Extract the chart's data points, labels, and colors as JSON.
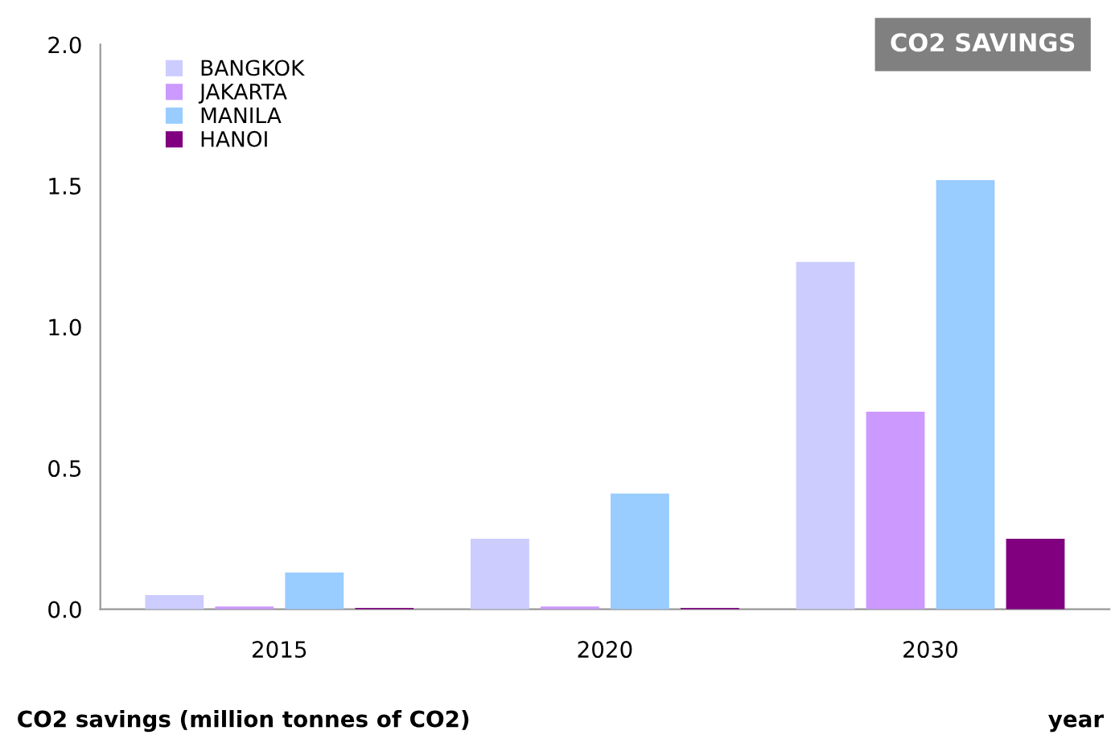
{
  "chart_data": {
    "type": "bar",
    "title": "CO2 SAVINGS",
    "ylabel": "CO2 savings (million tonnes of CO2)",
    "xlabel": "year",
    "categories": [
      "2015",
      "2020",
      "2030"
    ],
    "series": [
      {
        "name": "BANGKOK",
        "color": "#ccccff",
        "values": [
          0.05,
          0.25,
          1.23
        ]
      },
      {
        "name": "JAKARTA",
        "color": "#cc99ff",
        "values": [
          0.01,
          0.01,
          0.7
        ]
      },
      {
        "name": "MANILA",
        "color": "#99ccff",
        "values": [
          0.13,
          0.41,
          1.52
        ]
      },
      {
        "name": "HANOI",
        "color": "#800080",
        "values": [
          0.005,
          0.005,
          0.25
        ]
      }
    ],
    "ylim": [
      0,
      2.0
    ],
    "yticks": [
      {
        "value": 0,
        "label": "0.0"
      },
      {
        "value": 0.5,
        "label": "0.5"
      },
      {
        "value": 1.0,
        "label": "1.0"
      },
      {
        "value": 1.5,
        "label": "1.5"
      },
      {
        "value": 2.0,
        "label": "2.0"
      }
    ],
    "grid": false,
    "legend": "top left"
  }
}
